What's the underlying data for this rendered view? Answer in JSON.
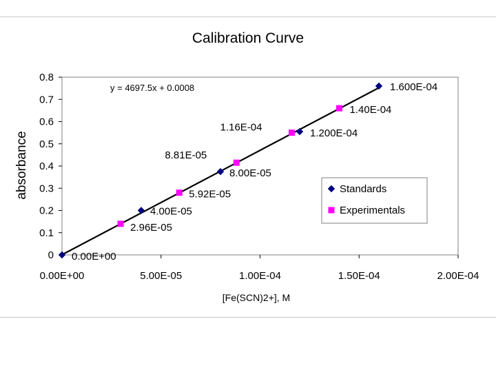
{
  "chart_data": {
    "type": "scatter",
    "title": "Calibration Curve",
    "xlabel": "[Fe(SCN)2+], M",
    "ylabel": "absorbance",
    "xlim": [
      0,
      0.0002
    ],
    "ylim": [
      0,
      0.8
    ],
    "x_ticks": [
      0,
      5e-05,
      0.0001,
      0.00015,
      0.0002
    ],
    "x_tick_labels": [
      "0.00E+00",
      "5.00E-05",
      "1.00E-04",
      "1.50E-04",
      "2.00E-04"
    ],
    "y_ticks": [
      0,
      0.1,
      0.2,
      0.3,
      0.4,
      0.5,
      0.6,
      0.7,
      0.8
    ],
    "y_tick_labels": [
      "0",
      "0.1",
      "0.2",
      "0.3",
      "0.4",
      "0.5",
      "0.6",
      "0.7",
      "0.8"
    ],
    "grid": false,
    "legend_position": "right",
    "trendline": {
      "equation": "y = 4697.5x + 0.0008",
      "slope": 4697.5,
      "intercept": 0.0008,
      "color": "#000000"
    },
    "series": [
      {
        "name": "Standards",
        "marker": "diamond",
        "color": "#000080",
        "points": [
          {
            "x": 0,
            "y": 0,
            "label": "0.00E+00"
          },
          {
            "x": 4e-05,
            "y": 0.2,
            "label": "4.00E-05"
          },
          {
            "x": 8e-05,
            "y": 0.375,
            "label": "8.00E-05"
          },
          {
            "x": 0.00012,
            "y": 0.555,
            "label": "1.200E-04"
          },
          {
            "x": 0.00016,
            "y": 0.76,
            "label": "1.600E-04"
          }
        ]
      },
      {
        "name": "Experimentals",
        "marker": "square",
        "color": "#ff00ff",
        "points": [
          {
            "x": 2.96e-05,
            "y": 0.14,
            "label": "2.96E-05"
          },
          {
            "x": 5.92e-05,
            "y": 0.28,
            "label": "5.92E-05"
          },
          {
            "x": 8.81e-05,
            "y": 0.415,
            "label": "8.81E-05"
          },
          {
            "x": 0.000116,
            "y": 0.55,
            "label": "1.16E-04"
          },
          {
            "x": 0.00014,
            "y": 0.66,
            "label": "1.40E-04"
          }
        ]
      }
    ]
  }
}
